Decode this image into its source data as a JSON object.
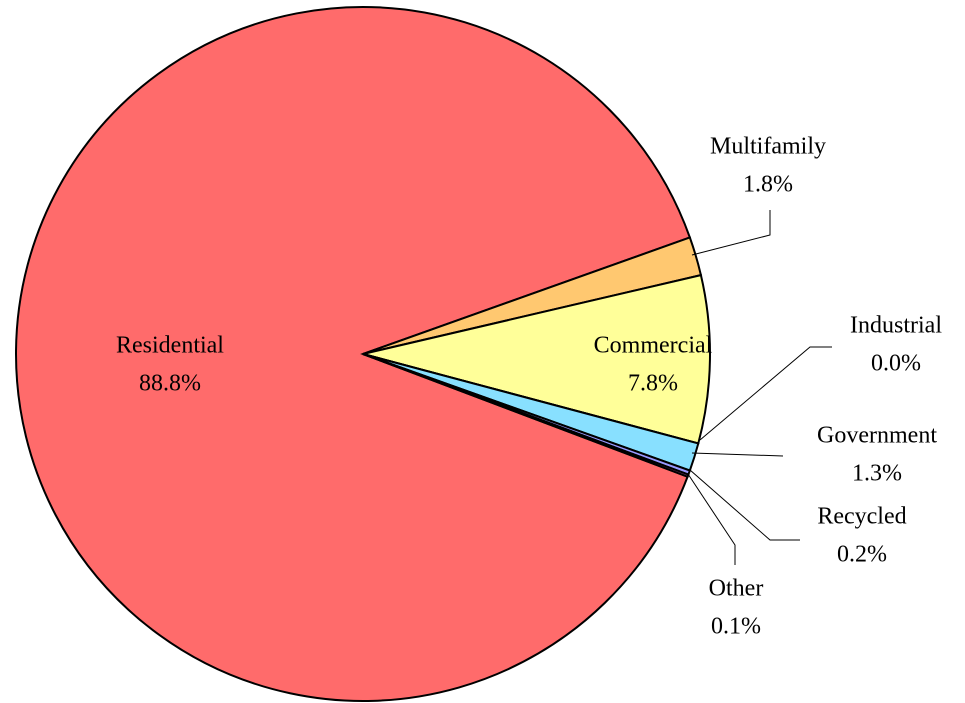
{
  "chart_data": {
    "type": "pie",
    "categories": [
      "Residential",
      "Multifamily",
      "Commercial",
      "Industrial",
      "Government",
      "Recycled",
      "Other"
    ],
    "values": [
      88.8,
      1.8,
      7.8,
      0.0,
      1.3,
      0.2,
      0.1
    ],
    "value_labels": [
      "88.8%",
      "1.8%",
      "7.8%",
      "0.0%",
      "1.3%",
      "0.2%",
      "0.1%"
    ],
    "colors": [
      "#ff6b6b",
      "#ffc870",
      "#ffff99",
      "#66cc66",
      "#88e0ff",
      "#9999ff",
      "#cc66cc"
    ]
  }
}
